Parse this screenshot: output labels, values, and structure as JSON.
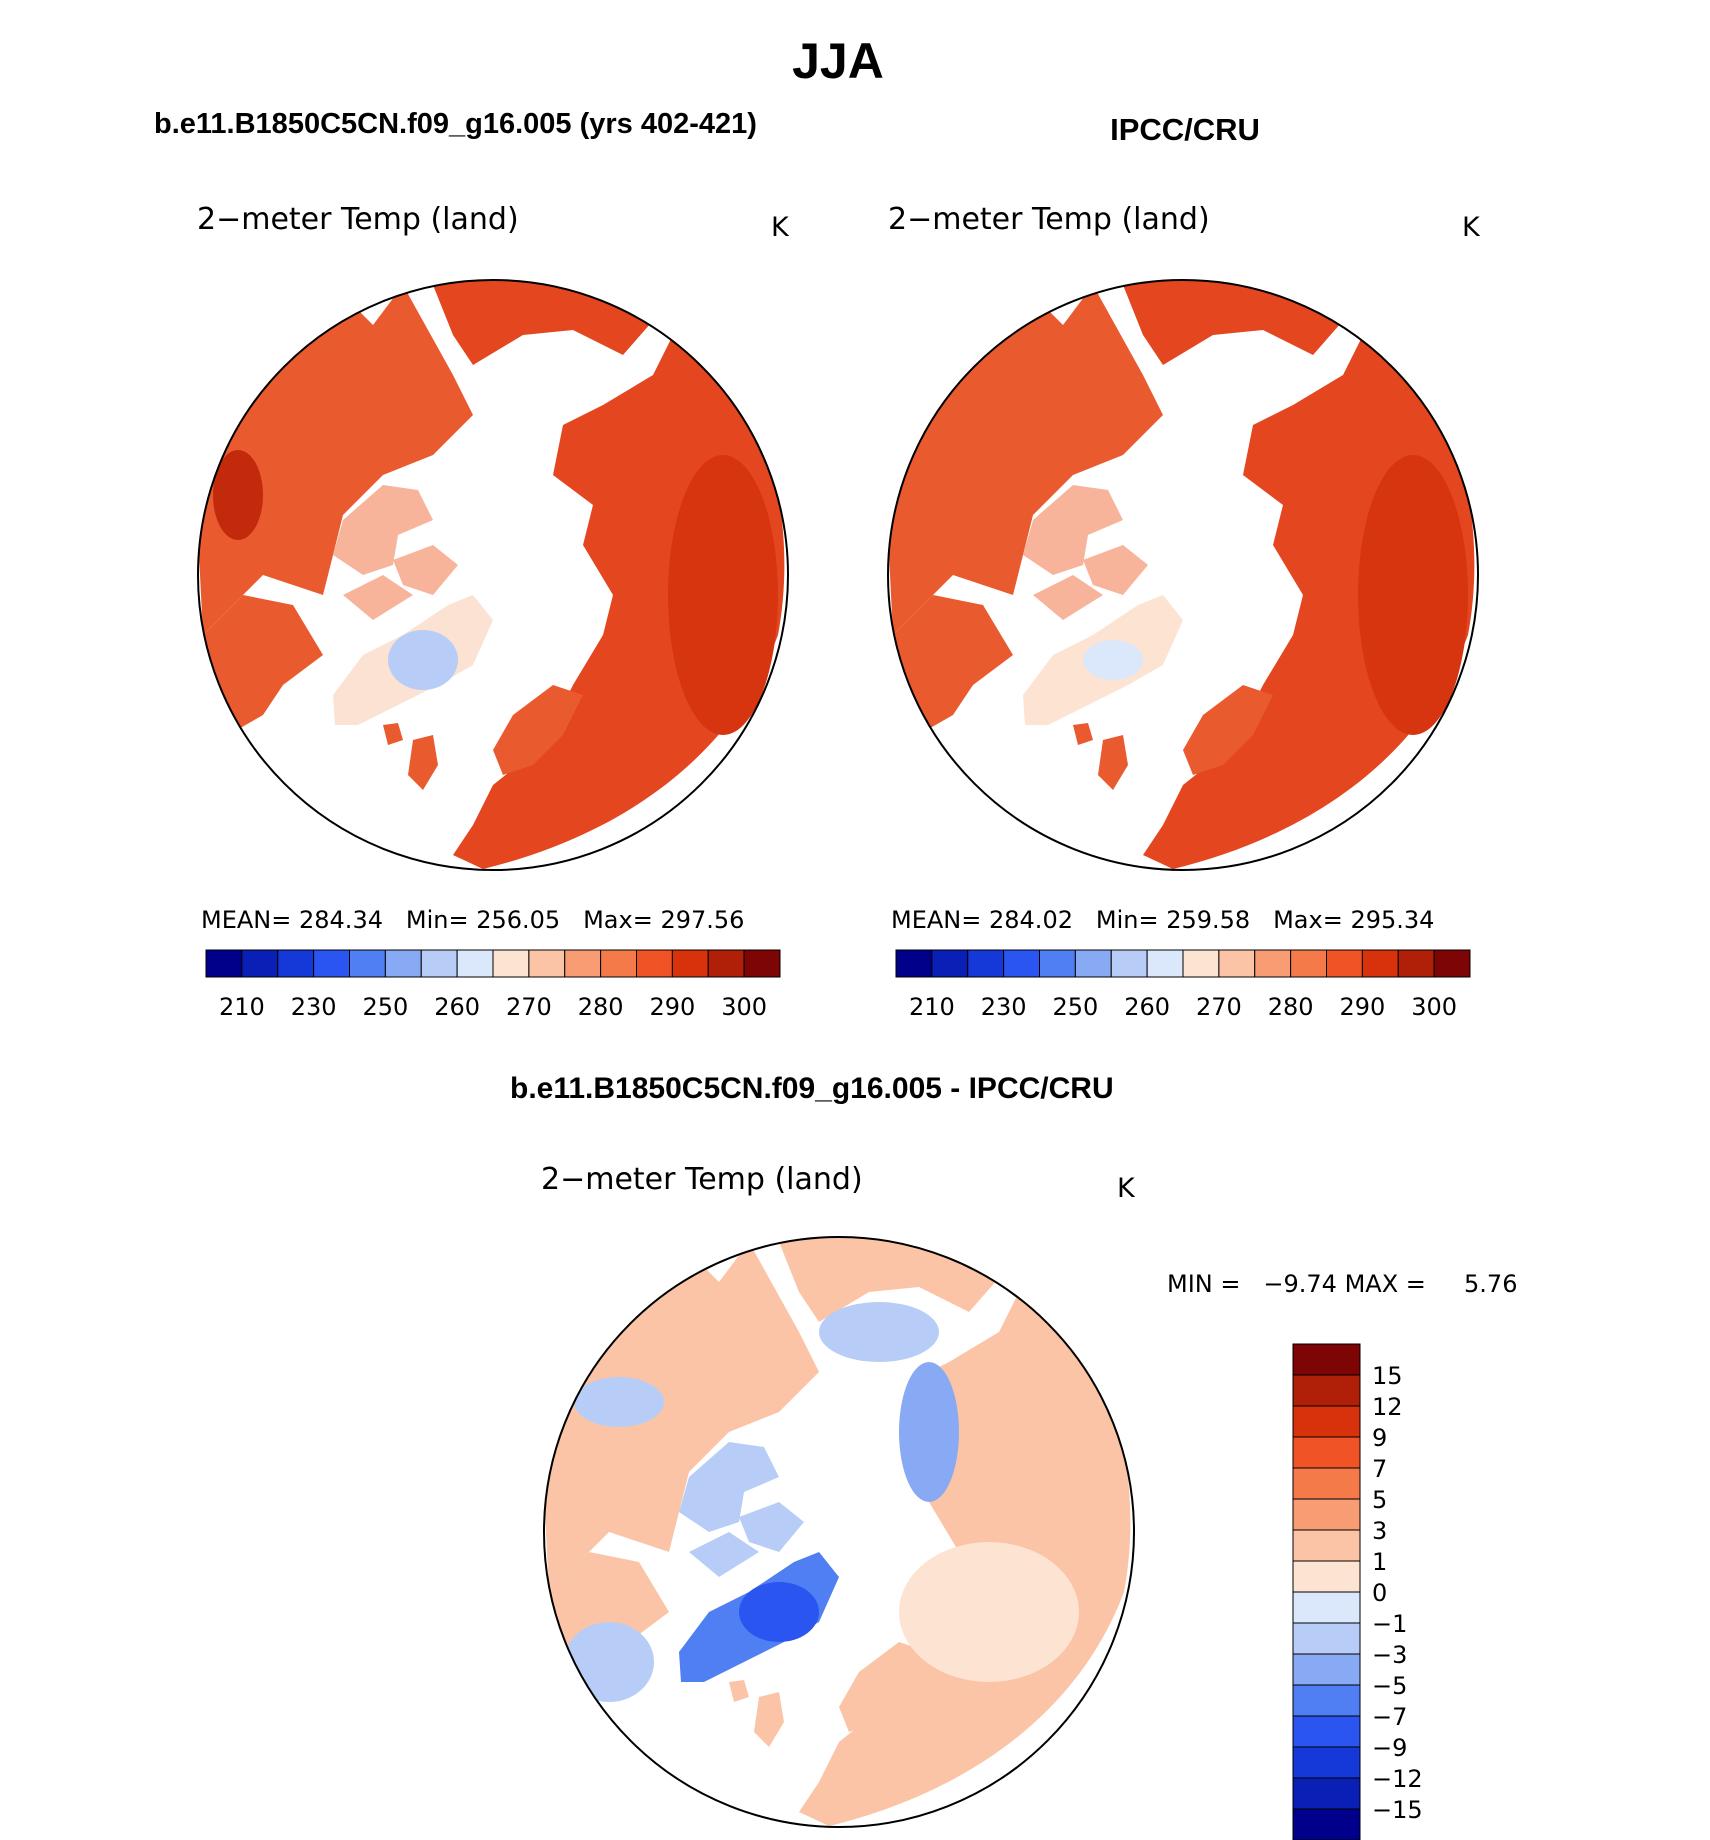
{
  "figure": {
    "season": "JJA"
  },
  "panels": [
    {
      "heading": "b.e11.B1850C5CN.f09_g16.005 (yrs 402-421)",
      "field": "2−meter Temp (land)",
      "units": "K",
      "stats": {
        "mean_label": "MEAN=",
        "mean": "284.34",
        "min_label": "Min=",
        "min": "256.05",
        "max_label": "Max=",
        "max": "297.56"
      }
    },
    {
      "heading": "IPCC/CRU",
      "field": "2−meter Temp (land)",
      "units": "K",
      "stats": {
        "mean_label": "MEAN=",
        "mean": "284.02",
        "min_label": "Min=",
        "min": "259.58",
        "max_label": "Max=",
        "max": "295.34"
      }
    }
  ],
  "diff_panel": {
    "heading": "b.e11.B1850C5CN.f09_g16.005 - IPCC/CRU",
    "field": "2−meter Temp (land)",
    "units": "K",
    "stats": {
      "min_label": "MIN =",
      "min": "−9.74",
      "max_label": "MAX =",
      "max": "5.76"
    }
  },
  "abs_colorbar": {
    "colors": [
      "#00008a",
      "#0a1fb5",
      "#1538d8",
      "#2a55f0",
      "#4f7ff2",
      "#88aaf5",
      "#b7cdf7",
      "#dbe8fb",
      "#fde3d2",
      "#fbc4a6",
      "#f89d73",
      "#f57a4a",
      "#f05326",
      "#d8320d",
      "#b01f08",
      "#7d0505"
    ],
    "tick_labels": [
      "210",
      "230",
      "250",
      "260",
      "270",
      "280",
      "290",
      "300"
    ]
  },
  "diff_colorbar": {
    "colors": [
      "#00008a",
      "#0a1fb5",
      "#1538d8",
      "#2a55f0",
      "#4f7ff2",
      "#88aaf5",
      "#b7cdf7",
      "#dbe8fb",
      "#fde3d2",
      "#fbc4a6",
      "#f89d73",
      "#f57a4a",
      "#f05326",
      "#d8320d",
      "#b01f08",
      "#7d0505"
    ],
    "tick_labels": [
      "−15",
      "−12",
      "−9",
      "−7",
      "−5",
      "−3",
      "−1",
      "0",
      "1",
      "3",
      "5",
      "7",
      "9",
      "12",
      "15"
    ]
  }
}
